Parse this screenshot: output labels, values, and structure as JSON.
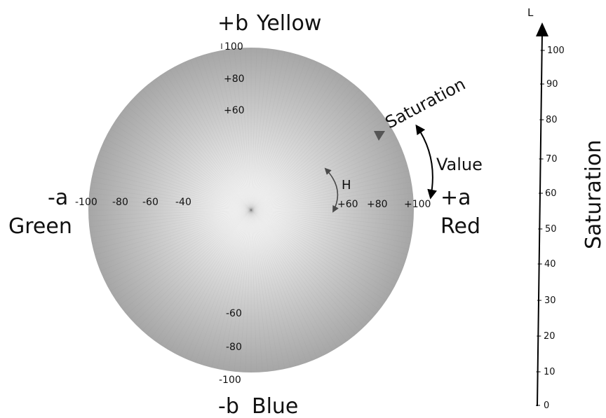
{
  "axes": {
    "b_pos": {
      "sign": "+b",
      "name": "Yellow"
    },
    "b_neg": {
      "sign": "-b",
      "name": "Blue"
    },
    "a_neg": {
      "sign": "-a",
      "name": "Green"
    },
    "a_pos": {
      "sign": "+a",
      "name": "Red"
    }
  },
  "b_ticks_top": [
    "100",
    "+80",
    "+60"
  ],
  "b_ticks_bottom": [
    "-60",
    "-80",
    "-100"
  ],
  "a_ticks_left": [
    "-100",
    "-80",
    "-60",
    "-40"
  ],
  "a_ticks_right": [
    "+60",
    "+80",
    "+100"
  ],
  "labels": {
    "saturation_arc": "Saturation",
    "value": "Value",
    "hue": "H",
    "saturation_vertical": "Saturation"
  },
  "l_axis": {
    "label": "L",
    "ticks": [
      "100",
      "90",
      "80",
      "70",
      "60",
      "50",
      "40",
      "30",
      "20",
      "10",
      "0"
    ]
  },
  "colors": {
    "disc_center": "#ffffff",
    "disc_edge": "#a6a6a6",
    "arrow_dark": "#000000",
    "arrow_grey": "#4a4a4a"
  }
}
